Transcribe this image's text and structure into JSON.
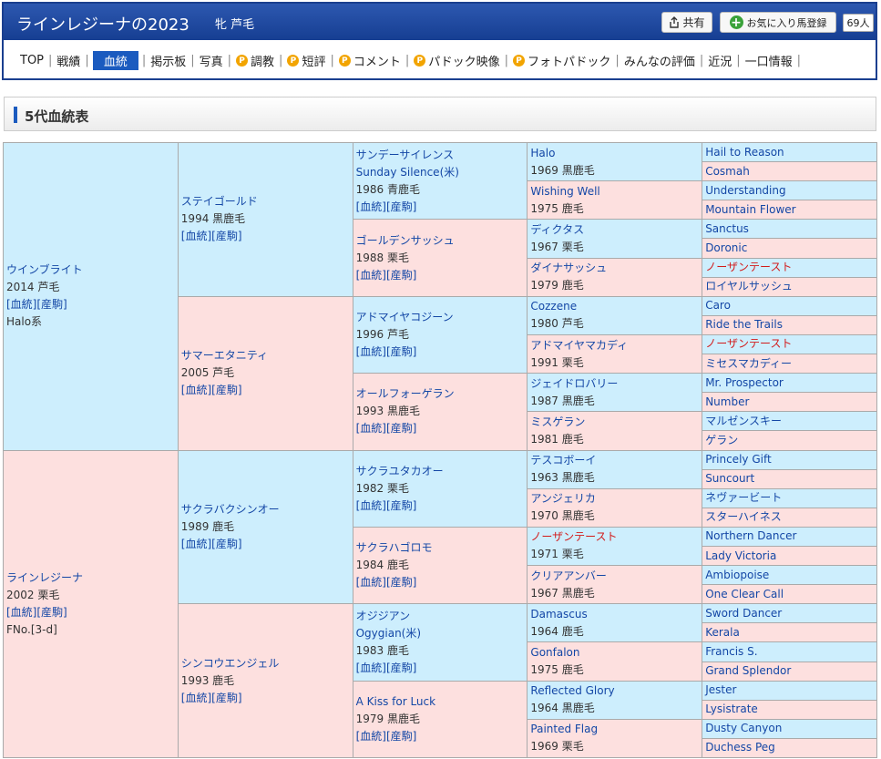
{
  "header": {
    "title": "ラインレジーナの2023",
    "sex_color": "牝  芦毛",
    "share_label": "共有",
    "share_icon": "share-icon",
    "favorite_label": "お気に入り馬登録",
    "favorite_icon": "plus-icon",
    "favorite_count": "69人"
  },
  "nav": [
    {
      "label": "TOP"
    },
    {
      "label": "戦績"
    },
    {
      "label": "血統",
      "current": true
    },
    {
      "label": "掲示板"
    },
    {
      "label": "写真"
    },
    {
      "label": "調教",
      "p": true
    },
    {
      "label": "短評",
      "p": true
    },
    {
      "label": "コメント",
      "p": true
    },
    {
      "label": "パドック映像",
      "p": true
    },
    {
      "label": "フォトパドック",
      "p": true
    },
    {
      "label": "みんなの評価"
    },
    {
      "label": "近況"
    },
    {
      "label": "一口情報"
    }
  ],
  "p_icon": "P",
  "section": {
    "title": "5代血統表"
  },
  "colors": {
    "sire_bg": "#cdeefd",
    "dam_bg": "#fde0df",
    "link": "#1447a6",
    "highlight": "#d21b1b",
    "header": "#1a3f8f"
  },
  "links": {
    "pedigree": "[血統]",
    "stallion": "[産駒]"
  },
  "pedigree": {
    "g1": [
      {
        "name": "ウインブライト",
        "year": "2014 芦毛",
        "links": true,
        "note": "Halo系"
      },
      {
        "name": "ラインレジーナ",
        "year": "2002 栗毛",
        "links": true,
        "note": "FNo.[3-d]"
      }
    ],
    "g2": [
      {
        "name": "ステイゴールド",
        "year": "1994 黒鹿毛",
        "links": true
      },
      {
        "name": "サマーエタニティ",
        "year": "2005 芦毛",
        "links": true
      },
      {
        "name": "サクラバクシンオー",
        "year": "1989 鹿毛",
        "links": true
      },
      {
        "name": "シンコウエンジェル",
        "year": "1993 鹿毛",
        "links": true
      }
    ],
    "g3": [
      {
        "name": "サンデーサイレンス",
        "sub": "Sunday Silence(米)",
        "year": "1986 青鹿毛",
        "links": true
      },
      {
        "name": "ゴールデンサッシュ",
        "year": "1988 栗毛",
        "links": true
      },
      {
        "name": "アドマイヤコジーン",
        "year": "1996 芦毛",
        "links": true
      },
      {
        "name": "オールフォーゲラン",
        "year": "1993 黒鹿毛",
        "links": true
      },
      {
        "name": "サクラユタカオー",
        "year": "1982 栗毛",
        "links": true
      },
      {
        "name": "サクラハゴロモ",
        "year": "1984 鹿毛",
        "links": true
      },
      {
        "name": "オジジアン",
        "sub": "Ogygian(米)",
        "year": "1983 鹿毛",
        "links": true
      },
      {
        "name": "A Kiss for Luck",
        "year": "1979 黒鹿毛",
        "links": true
      }
    ],
    "g4": [
      {
        "name": "Halo",
        "year": "1969 黒鹿毛"
      },
      {
        "name": "Wishing Well",
        "year": "1975 鹿毛"
      },
      {
        "name": "ディクタス",
        "year": "1967 栗毛"
      },
      {
        "name": "ダイナサッシュ",
        "year": "1979 鹿毛"
      },
      {
        "name": "Cozzene",
        "year": "1980 芦毛"
      },
      {
        "name": "アドマイヤマカディ",
        "year": "1991 栗毛"
      },
      {
        "name": "ジェイドロバリー",
        "year": "1987 黒鹿毛"
      },
      {
        "name": "ミスゲラン",
        "year": "1981 鹿毛"
      },
      {
        "name": "テスコボーイ",
        "year": "1963 黒鹿毛"
      },
      {
        "name": "アンジェリカ",
        "year": "1970 黒鹿毛"
      },
      {
        "name": "ノーザンテースト",
        "year": "1971 栗毛",
        "highlight": true
      },
      {
        "name": "クリアアンバー",
        "year": "1967 黒鹿毛"
      },
      {
        "name": "Damascus",
        "year": "1964 鹿毛"
      },
      {
        "name": "Gonfalon",
        "year": "1975 鹿毛"
      },
      {
        "name": "Reflected Glory",
        "year": "1964 黒鹿毛"
      },
      {
        "name": "Painted Flag",
        "year": "1969 栗毛"
      }
    ],
    "g5": [
      {
        "name": "Hail to Reason"
      },
      {
        "name": "Cosmah"
      },
      {
        "name": "Understanding"
      },
      {
        "name": "Mountain Flower"
      },
      {
        "name": "Sanctus"
      },
      {
        "name": "Doronic"
      },
      {
        "name": "ノーザンテースト",
        "highlight": true
      },
      {
        "name": "ロイヤルサッシュ"
      },
      {
        "name": "Caro"
      },
      {
        "name": "Ride the Trails"
      },
      {
        "name": "ノーザンテースト",
        "highlight": true
      },
      {
        "name": "ミセスマカディー"
      },
      {
        "name": "Mr. Prospector"
      },
      {
        "name": "Number"
      },
      {
        "name": "マルゼンスキー"
      },
      {
        "name": "ゲラン"
      },
      {
        "name": "Princely Gift"
      },
      {
        "name": "Suncourt"
      },
      {
        "name": "ネヴァービート"
      },
      {
        "name": "スターハイネス"
      },
      {
        "name": "Northern Dancer"
      },
      {
        "name": "Lady Victoria"
      },
      {
        "name": "Ambiopoise"
      },
      {
        "name": "One Clear Call"
      },
      {
        "name": "Sword Dancer"
      },
      {
        "name": "Kerala"
      },
      {
        "name": "Francis S."
      },
      {
        "name": "Grand Splendor"
      },
      {
        "name": "Jester"
      },
      {
        "name": "Lysistrate"
      },
      {
        "name": "Dusty Canyon"
      },
      {
        "name": "Duchess Peg"
      }
    ]
  }
}
